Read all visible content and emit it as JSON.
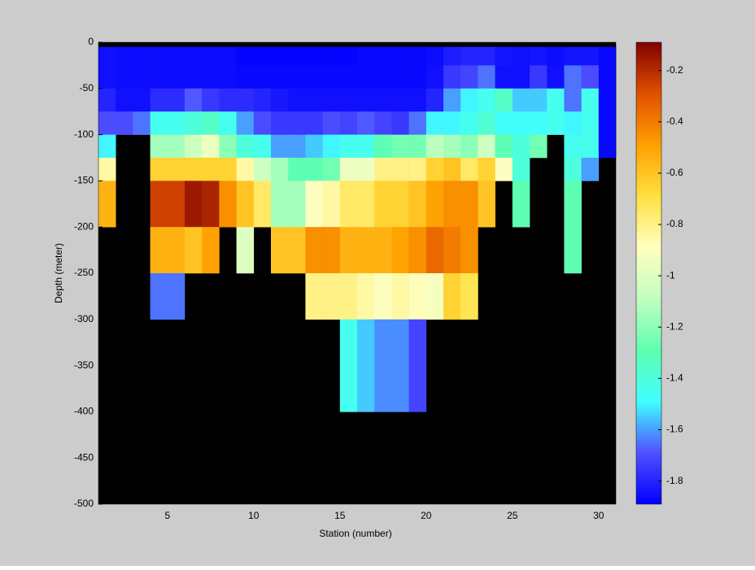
{
  "chart_data": {
    "type": "heatmap",
    "xlabel": "Station (number)",
    "ylabel": "Depth (meter)",
    "x": [
      1,
      2,
      3,
      4,
      5,
      6,
      7,
      8,
      9,
      10,
      11,
      12,
      13,
      14,
      15,
      16,
      17,
      18,
      19,
      20,
      21,
      22,
      23,
      24,
      25,
      26,
      27,
      28,
      29,
      30,
      31
    ],
    "y": [
      0,
      -5,
      -25,
      -50,
      -75,
      -100,
      -125,
      -150,
      -200,
      -250,
      -300,
      -400,
      -500
    ],
    "z": [
      [
        null,
        null,
        null,
        null,
        null,
        null,
        null,
        null,
        null,
        null,
        null,
        null,
        null,
        null,
        null,
        null,
        null,
        null,
        null,
        null,
        null,
        null,
        null,
        null,
        null,
        null,
        null,
        null,
        null,
        null
      ],
      [
        -1.85,
        -1.86,
        -1.86,
        -1.86,
        -1.86,
        -1.86,
        -1.86,
        -1.86,
        -1.88,
        -1.88,
        -1.88,
        -1.88,
        -1.88,
        -1.88,
        -1.88,
        -1.87,
        -1.87,
        -1.87,
        -1.87,
        -1.86,
        -1.82,
        -1.8,
        -1.8,
        -1.84,
        -1.85,
        -1.84,
        -1.86,
        -1.84,
        -1.84,
        -1.87
      ],
      [
        -1.85,
        -1.86,
        -1.86,
        -1.86,
        -1.86,
        -1.86,
        -1.86,
        -1.86,
        -1.87,
        -1.87,
        -1.87,
        -1.87,
        -1.87,
        -1.87,
        -1.87,
        -1.87,
        -1.87,
        -1.87,
        -1.87,
        -1.85,
        -1.75,
        -1.72,
        -1.65,
        -1.85,
        -1.85,
        -1.75,
        -1.85,
        -1.65,
        -1.7,
        -1.87
      ],
      [
        -1.8,
        -1.85,
        -1.85,
        -1.78,
        -1.78,
        -1.68,
        -1.75,
        -1.78,
        -1.78,
        -1.8,
        -1.83,
        -1.85,
        -1.85,
        -1.85,
        -1.85,
        -1.85,
        -1.85,
        -1.85,
        -1.85,
        -1.8,
        -1.6,
        -1.5,
        -1.45,
        -1.35,
        -1.55,
        -1.55,
        -1.45,
        -1.65,
        -1.45,
        -1.87
      ],
      [
        -1.7,
        -1.7,
        -1.65,
        -1.45,
        -1.45,
        -1.4,
        -1.35,
        -1.45,
        -1.6,
        -1.7,
        -1.75,
        -1.75,
        -1.75,
        -1.7,
        -1.72,
        -1.68,
        -1.72,
        -1.75,
        -1.65,
        -1.5,
        -1.5,
        -1.45,
        -1.38,
        -1.48,
        -1.48,
        -1.48,
        -1.45,
        -1.5,
        -1.45,
        -1.87
      ],
      [
        -1.5,
        null,
        null,
        -1.15,
        -1.15,
        -1.05,
        -0.95,
        -1.2,
        -1.4,
        -1.45,
        -1.6,
        -1.6,
        -1.55,
        -1.5,
        -1.45,
        -1.45,
        -1.3,
        -1.25,
        -1.25,
        -1.1,
        -1.15,
        -1.2,
        -1.05,
        -1.3,
        -1.4,
        -1.25,
        null,
        -1.45,
        -1.45,
        -1.87
      ],
      [
        -0.85,
        null,
        null,
        -0.65,
        -0.65,
        -0.65,
        -0.65,
        -0.65,
        -0.85,
        -1.05,
        -1.15,
        -1.3,
        -1.3,
        -1.25,
        -0.95,
        -0.95,
        -0.8,
        -0.8,
        -0.8,
        -0.65,
        -0.6,
        -0.75,
        -0.65,
        -0.9,
        -1.4,
        null,
        null,
        -1.4,
        -1.6,
        null
      ],
      [
        -0.55,
        null,
        null,
        -0.25,
        -0.25,
        -0.15,
        -0.18,
        -0.45,
        -0.6,
        -0.75,
        -1.15,
        -1.15,
        -0.9,
        -0.85,
        -0.75,
        -0.75,
        -0.65,
        -0.65,
        -0.6,
        -0.5,
        -0.45,
        -0.45,
        -0.6,
        null,
        -1.3,
        null,
        null,
        -1.3,
        null,
        null
      ],
      [
        null,
        null,
        null,
        -0.55,
        -0.55,
        -0.6,
        -0.5,
        null,
        -1.0,
        null,
        -0.6,
        -0.6,
        -0.45,
        -0.45,
        -0.55,
        -0.55,
        -0.55,
        -0.5,
        -0.45,
        -0.35,
        -0.4,
        -0.45,
        null,
        null,
        null,
        null,
        null,
        -1.3,
        null,
        null
      ],
      [
        null,
        null,
        null,
        -1.65,
        -1.65,
        null,
        null,
        null,
        null,
        null,
        null,
        null,
        -0.8,
        -0.8,
        -0.8,
        -0.85,
        -0.9,
        -0.85,
        -0.88,
        -0.92,
        -0.65,
        -0.72,
        null,
        null,
        null,
        null,
        null,
        null,
        null,
        null
      ],
      [
        null,
        null,
        null,
        null,
        null,
        null,
        null,
        null,
        null,
        null,
        null,
        null,
        null,
        null,
        -1.45,
        -1.55,
        -1.62,
        -1.62,
        -1.72,
        null,
        null,
        null,
        null,
        null,
        null,
        null,
        null,
        null,
        null,
        null
      ],
      [
        null,
        null,
        null,
        null,
        null,
        null,
        null,
        null,
        null,
        null,
        null,
        null,
        null,
        null,
        null,
        null,
        null,
        null,
        null,
        null,
        null,
        null,
        null,
        null,
        null,
        null,
        null,
        null,
        null,
        null
      ]
    ],
    "xlim": [
      1,
      31
    ],
    "xticks": [
      5,
      10,
      15,
      20,
      25,
      30
    ],
    "ylim": [
      -500,
      0
    ],
    "yticks": [
      0,
      -50,
      -100,
      -150,
      -200,
      -250,
      -300,
      -350,
      -400,
      -450,
      -500
    ],
    "clim": [
      -1.89,
      -0.09
    ],
    "cticks": [
      -1.8,
      -1.6,
      -1.4,
      -1.2,
      -1,
      -0.8,
      -0.6,
      -0.4,
      -0.2
    ],
    "colormap": [
      "#0000ff",
      "#5050ff",
      "#40ffff",
      "#60ffb0",
      "#c0ffc0",
      "#ffffc0",
      "#ffe040",
      "#ffa000",
      "#e05000",
      "#800000"
    ],
    "missing_color": "#000000",
    "background": "#cccccc"
  }
}
